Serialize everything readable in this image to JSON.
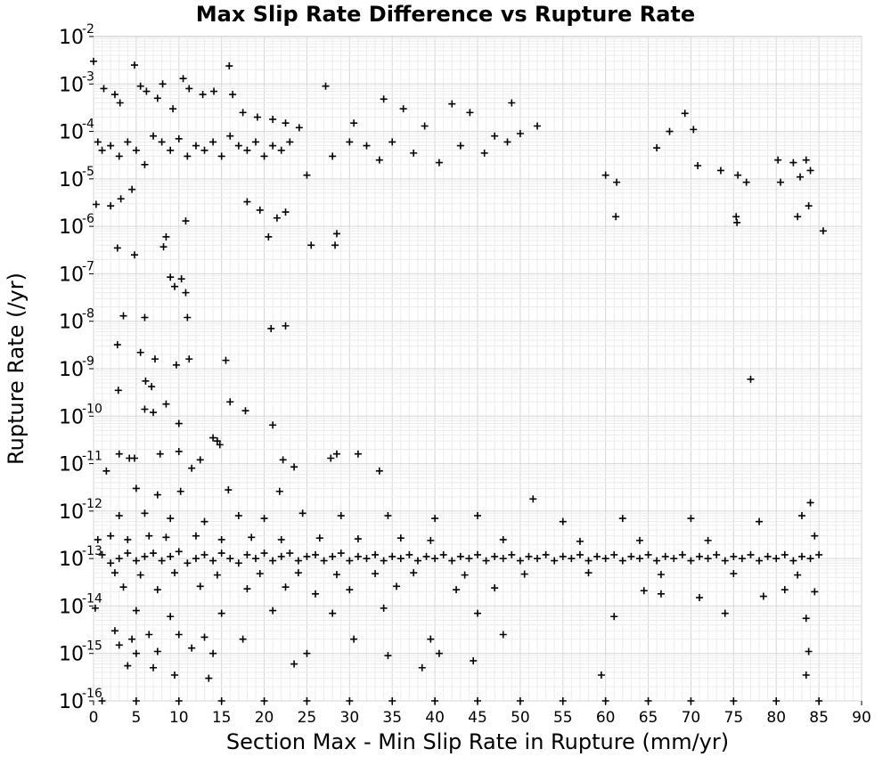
{
  "chart_data": {
    "type": "scatter",
    "title": "Max Slip Rate Difference vs Rupture Rate",
    "xlabel": "Section Max - Min Slip Rate in Rupture (mm/yr)",
    "ylabel": "Rupture Rate (/yr)",
    "xlim": [
      0,
      90
    ],
    "ylim": [
      1e-16,
      0.01
    ],
    "yscale": "log",
    "grid": true,
    "marker": "+",
    "marker_color": "#000000",
    "xticks": [
      "0",
      "5",
      "10",
      "15",
      "20",
      "25",
      "30",
      "35",
      "40",
      "45",
      "50",
      "55",
      "60",
      "65",
      "70",
      "75",
      "80",
      "85",
      "90"
    ],
    "yticks": [
      {
        "base": "10",
        "exp": "-2"
      },
      {
        "base": "10",
        "exp": "-3"
      },
      {
        "base": "10",
        "exp": "-4"
      },
      {
        "base": "10",
        "exp": "-5"
      },
      {
        "base": "10",
        "exp": "-6"
      },
      {
        "base": "10",
        "exp": "-7"
      },
      {
        "base": "10",
        "exp": "-8"
      },
      {
        "base": "10",
        "exp": "-9"
      },
      {
        "base": "10",
        "exp": "-10"
      },
      {
        "base": "10",
        "exp": "-11"
      },
      {
        "base": "10",
        "exp": "-12"
      },
      {
        "base": "10",
        "exp": "-13"
      },
      {
        "base": "10",
        "exp": "-14"
      },
      {
        "base": "10",
        "exp": "-15"
      },
      {
        "base": "10",
        "exp": "-16"
      }
    ],
    "points": [
      [
        0.0,
        0.003
      ],
      [
        1.2,
        0.0008
      ],
      [
        2.5,
        0.0006
      ],
      [
        3.1,
        0.0004
      ],
      [
        4.8,
        0.0025
      ],
      [
        5.5,
        0.0009
      ],
      [
        6.2,
        0.0007
      ],
      [
        7.5,
        0.0005
      ],
      [
        8.1,
        0.001
      ],
      [
        9.3,
        0.0003
      ],
      [
        10.5,
        0.0013
      ],
      [
        11.2,
        0.0008
      ],
      [
        12.8,
        0.0006
      ],
      [
        14.1,
        0.0007
      ],
      [
        15.9,
        0.0024
      ],
      [
        16.3,
        0.0006
      ],
      [
        17.5,
        0.00025
      ],
      [
        19.2,
        0.0002
      ],
      [
        21.0,
        0.00018
      ],
      [
        22.5,
        0.00015
      ],
      [
        24.1,
        0.00012
      ],
      [
        27.2,
        0.0009
      ],
      [
        30.5,
        0.00015
      ],
      [
        34.0,
        0.00048
      ],
      [
        36.3,
        0.0003
      ],
      [
        38.8,
        0.00013
      ],
      [
        42.0,
        0.00038
      ],
      [
        44.1,
        0.00025
      ],
      [
        49.0,
        0.0004
      ],
      [
        52.0,
        0.00013
      ],
      [
        67.5,
        0.0001
      ],
      [
        70.3,
        0.00011
      ],
      [
        69.3,
        0.00024
      ],
      [
        0.5,
        6e-05
      ],
      [
        1.0,
        4e-05
      ],
      [
        2.0,
        5e-05
      ],
      [
        3.0,
        3e-05
      ],
      [
        4.0,
        6e-05
      ],
      [
        5.0,
        4e-05
      ],
      [
        6.0,
        2e-05
      ],
      [
        7.0,
        8e-05
      ],
      [
        8.0,
        6e-05
      ],
      [
        9.0,
        4e-05
      ],
      [
        10.0,
        7e-05
      ],
      [
        11.0,
        3e-05
      ],
      [
        12.0,
        5e-05
      ],
      [
        13.0,
        4e-05
      ],
      [
        14.0,
        6e-05
      ],
      [
        15.0,
        3e-05
      ],
      [
        16.0,
        8e-05
      ],
      [
        17.0,
        5e-05
      ],
      [
        18.0,
        4e-05
      ],
      [
        19.0,
        6e-05
      ],
      [
        20.0,
        3e-05
      ],
      [
        21.0,
        5e-05
      ],
      [
        22.0,
        4e-05
      ],
      [
        23.0,
        6e-05
      ],
      [
        25.0,
        1.2e-05
      ],
      [
        28.0,
        3e-05
      ],
      [
        30.0,
        6e-05
      ],
      [
        32.0,
        5e-05
      ],
      [
        33.5,
        2.5e-05
      ],
      [
        35.0,
        6e-05
      ],
      [
        37.5,
        3.5e-05
      ],
      [
        40.5,
        2.2e-05
      ],
      [
        43.0,
        5e-05
      ],
      [
        45.8,
        3.5e-05
      ],
      [
        47.0,
        8e-05
      ],
      [
        48.5,
        6e-05
      ],
      [
        50.0,
        9e-05
      ],
      [
        60.0,
        1.2e-05
      ],
      [
        61.3,
        8.5e-06
      ],
      [
        66.0,
        4.5e-05
      ],
      [
        70.8,
        1.9e-05
      ],
      [
        73.5,
        1.5e-05
      ],
      [
        75.5,
        1.2e-05
      ],
      [
        76.5,
        8.5e-06
      ],
      [
        80.5,
        8.5e-06
      ],
      [
        80.2,
        2.5e-05
      ],
      [
        82.0,
        2.2e-05
      ],
      [
        82.8,
        1.1e-05
      ],
      [
        83.5,
        2.5e-05
      ],
      [
        84.0,
        1.5e-05
      ],
      [
        2.0,
        2.7e-06
      ],
      [
        0.3,
        2.9e-06
      ],
      [
        3.2,
        3.8e-06
      ],
      [
        4.5,
        6e-06
      ],
      [
        10.8,
        1.3e-06
      ],
      [
        18.0,
        3.3e-06
      ],
      [
        19.5,
        2.2e-06
      ],
      [
        20.5,
        6e-07
      ],
      [
        21.5,
        1.5e-06
      ],
      [
        22.5,
        2e-06
      ],
      [
        25.5,
        4e-07
      ],
      [
        28.5,
        7e-07
      ],
      [
        28.3,
        4e-07
      ],
      [
        61.2,
        1.6e-06
      ],
      [
        75.3,
        1.6e-06
      ],
      [
        75.4,
        1.2e-06
      ],
      [
        82.5,
        1.6e-06
      ],
      [
        83.8,
        2.7e-06
      ],
      [
        85.5,
        8e-07
      ],
      [
        2.8,
        3.5e-07
      ],
      [
        4.8,
        2.5e-07
      ],
      [
        8.2,
        3.7e-07
      ],
      [
        8.5,
        6e-07
      ],
      [
        9.0,
        8.5e-08
      ],
      [
        9.5,
        5.4e-08
      ],
      [
        10.3,
        7.8e-08
      ],
      [
        10.8,
        4e-08
      ],
      [
        3.5,
        1.3e-08
      ],
      [
        6.0,
        1.2e-08
      ],
      [
        11.0,
        1.2e-08
      ],
      [
        20.8,
        7e-09
      ],
      [
        22.5,
        8e-09
      ],
      [
        2.8,
        3.2e-09
      ],
      [
        5.5,
        2.2e-09
      ],
      [
        7.2,
        1.6e-09
      ],
      [
        9.7,
        1.2e-09
      ],
      [
        11.2,
        1.6e-09
      ],
      [
        15.5,
        1.5e-09
      ],
      [
        2.9,
        3.5e-10
      ],
      [
        6.1,
        5.5e-10
      ],
      [
        6.8,
        4.2e-10
      ],
      [
        6.0,
        1.4e-10
      ],
      [
        7.0,
        1.2e-10
      ],
      [
        8.5,
        1.8e-10
      ],
      [
        16.0,
        2e-10
      ],
      [
        17.8,
        1.3e-10
      ],
      [
        10.0,
        7e-11
      ],
      [
        14.0,
        3.5e-11
      ],
      [
        14.5,
        3e-11
      ],
      [
        21.0,
        6.5e-11
      ],
      [
        77.0,
        6e-10
      ],
      [
        1.5,
        7e-12
      ],
      [
        3.0,
        1.6e-11
      ],
      [
        4.2,
        1.3e-11
      ],
      [
        4.8,
        1.3e-11
      ],
      [
        7.8,
        1.6e-11
      ],
      [
        10.0,
        1.8e-11
      ],
      [
        11.5,
        8e-12
      ],
      [
        12.5,
        1.2e-11
      ],
      [
        14.8,
        2.5e-11
      ],
      [
        22.2,
        1.2e-11
      ],
      [
        23.5,
        8.5e-12
      ],
      [
        27.8,
        1.3e-11
      ],
      [
        28.5,
        1.6e-11
      ],
      [
        31.0,
        1.6e-11
      ],
      [
        33.5,
        7e-12
      ],
      [
        5.0,
        3e-12
      ],
      [
        7.5,
        2.2e-12
      ],
      [
        10.2,
        2.6e-12
      ],
      [
        15.8,
        2.8e-12
      ],
      [
        21.8,
        2.6e-12
      ],
      [
        51.5,
        1.8e-12
      ],
      [
        84.0,
        1.5e-12
      ],
      [
        3.0,
        8e-13
      ],
      [
        6.0,
        9e-13
      ],
      [
        9.0,
        7e-13
      ],
      [
        13.0,
        6e-13
      ],
      [
        17.0,
        8e-13
      ],
      [
        20.0,
        7e-13
      ],
      [
        24.5,
        9e-13
      ],
      [
        29.0,
        8e-13
      ],
      [
        34.5,
        8e-13
      ],
      [
        40.0,
        7e-13
      ],
      [
        45.0,
        8e-13
      ],
      [
        55.0,
        6e-13
      ],
      [
        62.0,
        7e-13
      ],
      [
        70.0,
        7e-13
      ],
      [
        78.0,
        6e-13
      ],
      [
        83.0,
        8e-13
      ],
      [
        0.5,
        2.5e-13
      ],
      [
        2.0,
        3e-13
      ],
      [
        4.0,
        2.5e-13
      ],
      [
        6.5,
        3e-13
      ],
      [
        8.5,
        2.8e-13
      ],
      [
        12.0,
        3e-13
      ],
      [
        15.0,
        2.5e-13
      ],
      [
        18.5,
        2.8e-13
      ],
      [
        22.0,
        2.5e-13
      ],
      [
        26.5,
        2.7e-13
      ],
      [
        31.0,
        2.6e-13
      ],
      [
        36.0,
        2.7e-13
      ],
      [
        39.5,
        2.4e-13
      ],
      [
        48.0,
        2.5e-13
      ],
      [
        57.0,
        2.3e-13
      ],
      [
        64.0,
        2.4e-13
      ],
      [
        72.0,
        2.4e-13
      ],
      [
        84.5,
        3e-13
      ],
      [
        1.0,
        1.2e-13
      ],
      [
        2.0,
        8e-14
      ],
      [
        3.0,
        1e-13
      ],
      [
        4.0,
        1.3e-13
      ],
      [
        5.0,
        9e-14
      ],
      [
        6.0,
        1.1e-13
      ],
      [
        7.0,
        1.3e-13
      ],
      [
        8.0,
        9e-14
      ],
      [
        9.0,
        1.1e-13
      ],
      [
        10.0,
        1.4e-13
      ],
      [
        11.0,
        8e-14
      ],
      [
        12.0,
        1e-13
      ],
      [
        13.0,
        1.2e-13
      ],
      [
        14.0,
        9e-14
      ],
      [
        15.0,
        1.3e-13
      ],
      [
        16.0,
        1e-13
      ],
      [
        17.0,
        8e-14
      ],
      [
        18.0,
        1.2e-13
      ],
      [
        19.0,
        1e-13
      ],
      [
        20.0,
        1.3e-13
      ],
      [
        21.0,
        9e-14
      ],
      [
        22.0,
        1.1e-13
      ],
      [
        23.0,
        1.3e-13
      ],
      [
        24.0,
        9e-14
      ],
      [
        25.0,
        1.1e-13
      ],
      [
        26.0,
        1.2e-13
      ],
      [
        27.0,
        9e-14
      ],
      [
        28.0,
        1.1e-13
      ],
      [
        29.0,
        1.3e-13
      ],
      [
        30.0,
        9e-14
      ],
      [
        31.0,
        1.1e-13
      ],
      [
        32.0,
        1e-13
      ],
      [
        33.0,
        1.2e-13
      ],
      [
        34.0,
        9e-14
      ],
      [
        35.0,
        1.1e-13
      ],
      [
        36.0,
        1e-13
      ],
      [
        37.0,
        1.2e-13
      ],
      [
        38.0,
        9e-14
      ],
      [
        39.0,
        1.1e-13
      ],
      [
        40.0,
        1e-13
      ],
      [
        41.0,
        1.2e-13
      ],
      [
        42.0,
        9e-14
      ],
      [
        43.0,
        1.1e-13
      ],
      [
        44.0,
        1e-13
      ],
      [
        45.0,
        1.2e-13
      ],
      [
        46.0,
        9e-14
      ],
      [
        47.0,
        1.1e-13
      ],
      [
        48.0,
        1e-13
      ],
      [
        49.0,
        1.2e-13
      ],
      [
        50.0,
        9e-14
      ],
      [
        51.0,
        1.1e-13
      ],
      [
        52.0,
        1e-13
      ],
      [
        53.0,
        1.2e-13
      ],
      [
        54.0,
        9e-14
      ],
      [
        55.0,
        1.1e-13
      ],
      [
        56.0,
        1e-13
      ],
      [
        57.0,
        1.2e-13
      ],
      [
        58.0,
        9e-14
      ],
      [
        59.0,
        1.1e-13
      ],
      [
        60.0,
        1e-13
      ],
      [
        61.0,
        1.2e-13
      ],
      [
        62.0,
        9e-14
      ],
      [
        63.0,
        1.1e-13
      ],
      [
        64.0,
        1e-13
      ],
      [
        65.0,
        1.2e-13
      ],
      [
        66.0,
        9e-14
      ],
      [
        67.0,
        1.1e-13
      ],
      [
        68.0,
        1e-13
      ],
      [
        69.0,
        1.2e-13
      ],
      [
        70.0,
        9e-14
      ],
      [
        71.0,
        1.1e-13
      ],
      [
        72.0,
        1e-13
      ],
      [
        73.0,
        1.2e-13
      ],
      [
        74.0,
        9e-14
      ],
      [
        75.0,
        1.1e-13
      ],
      [
        76.0,
        1e-13
      ],
      [
        77.0,
        1.2e-13
      ],
      [
        78.0,
        9e-14
      ],
      [
        79.0,
        1.1e-13
      ],
      [
        80.0,
        1e-13
      ],
      [
        81.0,
        1.2e-13
      ],
      [
        82.0,
        9e-14
      ],
      [
        83.0,
        1.1e-13
      ],
      [
        84.0,
        1e-13
      ],
      [
        85.0,
        1.2e-13
      ],
      [
        2.5,
        5e-14
      ],
      [
        5.5,
        4.5e-14
      ],
      [
        9.5,
        5e-14
      ],
      [
        14.5,
        4.5e-14
      ],
      [
        19.5,
        4.8e-14
      ],
      [
        24.0,
        5e-14
      ],
      [
        28.5,
        4.6e-14
      ],
      [
        33.0,
        4.8e-14
      ],
      [
        37.5,
        5e-14
      ],
      [
        43.5,
        4.5e-14
      ],
      [
        50.5,
        4.7e-14
      ],
      [
        58.0,
        5e-14
      ],
      [
        66.5,
        4.6e-14
      ],
      [
        75.0,
        4.8e-14
      ],
      [
        82.5,
        4.5e-14
      ],
      [
        3.5,
        2.5e-14
      ],
      [
        7.5,
        2.2e-14
      ],
      [
        12.5,
        2.6e-14
      ],
      [
        18.0,
        2.3e-14
      ],
      [
        22.5,
        2.5e-14
      ],
      [
        26.0,
        1.8e-14
      ],
      [
        30.0,
        2.2e-14
      ],
      [
        35.5,
        2.6e-14
      ],
      [
        42.5,
        2.2e-14
      ],
      [
        47.0,
        2.4e-14
      ],
      [
        64.5,
        2.1e-14
      ],
      [
        66.5,
        1.8e-14
      ],
      [
        71.0,
        1.5e-14
      ],
      [
        78.5,
        1.6e-14
      ],
      [
        81.0,
        2.2e-14
      ],
      [
        84.5,
        2e-14
      ],
      [
        0.2,
        9e-15
      ],
      [
        5.0,
        8e-15
      ],
      [
        9.0,
        6e-15
      ],
      [
        15.0,
        7e-15
      ],
      [
        21.0,
        8e-15
      ],
      [
        28.0,
        7e-15
      ],
      [
        34.0,
        9e-15
      ],
      [
        45.0,
        7e-15
      ],
      [
        61.0,
        6e-15
      ],
      [
        74.0,
        7e-15
      ],
      [
        83.5,
        5.5e-15
      ],
      [
        2.5,
        3e-15
      ],
      [
        4.5,
        2e-15
      ],
      [
        6.5,
        2.5e-15
      ],
      [
        10.0,
        2.5e-15
      ],
      [
        13.0,
        2.2e-15
      ],
      [
        17.5,
        2e-15
      ],
      [
        30.5,
        2e-15
      ],
      [
        39.5,
        2e-15
      ],
      [
        48.0,
        2.5e-15
      ],
      [
        3.0,
        1.5e-15
      ],
      [
        5.0,
        1e-15
      ],
      [
        7.5,
        1.1e-15
      ],
      [
        11.5,
        1.3e-15
      ],
      [
        14.0,
        1e-15
      ],
      [
        25.0,
        1e-15
      ],
      [
        34.5,
        9e-16
      ],
      [
        40.5,
        1e-15
      ],
      [
        44.5,
        7e-16
      ],
      [
        83.8,
        1.1e-15
      ],
      [
        4.0,
        5.5e-16
      ],
      [
        7.0,
        5e-16
      ],
      [
        23.5,
        6e-16
      ],
      [
        38.5,
        5e-16
      ],
      [
        9.5,
        3.5e-16
      ],
      [
        13.5,
        3e-16
      ],
      [
        59.5,
        3.5e-16
      ],
      [
        83.5,
        3.5e-16
      ],
      [
        1.0,
        1e-16
      ],
      [
        5.0,
        1e-16
      ],
      [
        10.0,
        1e-16
      ],
      [
        15.0,
        1e-16
      ],
      [
        20.0,
        1e-16
      ],
      [
        25.0,
        1e-16
      ],
      [
        30.0,
        1e-16
      ],
      [
        35.0,
        1e-16
      ],
      [
        40.0,
        1e-16
      ],
      [
        45.0,
        1e-16
      ],
      [
        50.0,
        1e-16
      ],
      [
        55.0,
        1e-16
      ],
      [
        60.0,
        1e-16
      ],
      [
        65.0,
        1e-16
      ],
      [
        70.0,
        1e-16
      ],
      [
        75.0,
        1e-16
      ],
      [
        80.0,
        1e-16
      ],
      [
        85.0,
        1e-16
      ]
    ]
  }
}
